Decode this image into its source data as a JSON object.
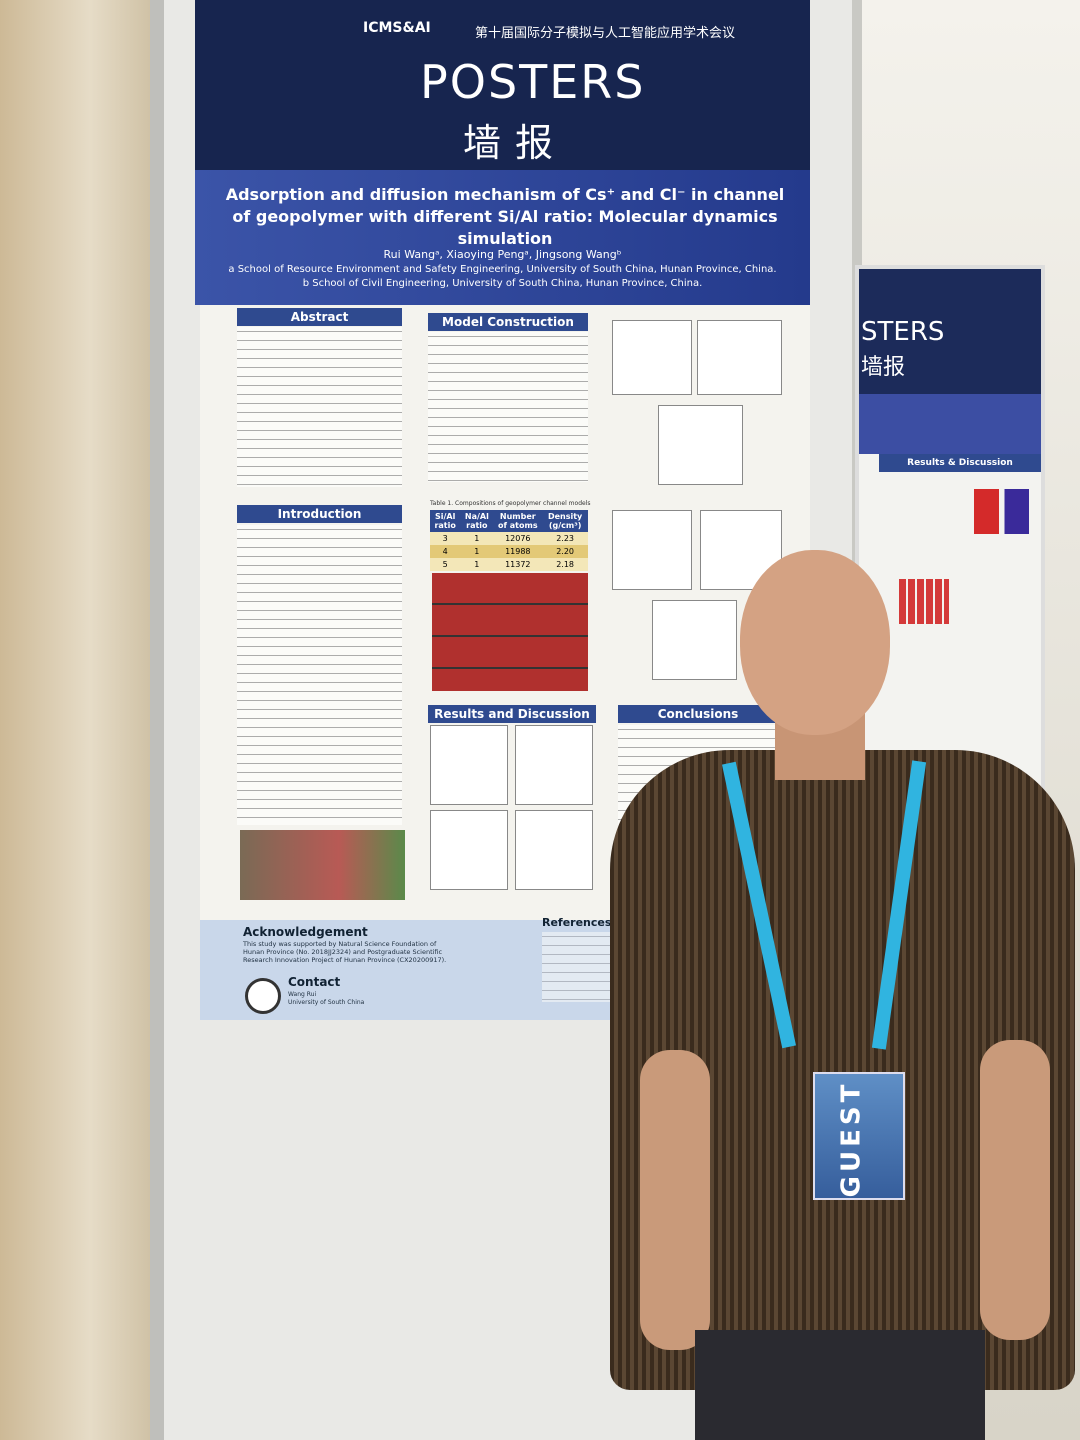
{
  "poster": {
    "conference_logo": "ICMS&AI",
    "conference_name": "第十届国际分子模拟与人工智能应用学术会议",
    "banner": "POSTERS",
    "banner_cn": "墙报",
    "title": "Adsorption and diffusion mechanism of Cs⁺ and Cl⁻ in channel of geopolymer with different Si/Al ratio: Molecular dynamics simulation",
    "authors": "Rui Wangᵃ, Xiaoying Pengᵃ, Jingsong Wangᵇ",
    "affiliations": [
      "a School of Resource Environment and Safety Engineering, University of South China, Hunan Province, China.",
      "b School of Civil Engineering, University of South China, Hunan Province, China."
    ],
    "sections": {
      "abstract": "Abstract",
      "model": "Model Construction",
      "introduction": "Introduction",
      "results": "Results and Discussion",
      "conclusions": "Conclusions",
      "acknowledgement": "Acknowledgement",
      "contact": "Contact",
      "references": "References"
    },
    "table": {
      "caption": "Table 1. Compositions of geopolymer channel models",
      "header": [
        "Si/Al ratio",
        "Na/Al ratio",
        "Number of atoms",
        "Density (g/cm³)"
      ],
      "rows": [
        [
          "3",
          "1",
          "12076",
          "2.23"
        ],
        [
          "4",
          "1",
          "11988",
          "2.20"
        ],
        [
          "5",
          "1",
          "11372",
          "2.18"
        ]
      ]
    },
    "acknowledgement_text": "This study was supported by Natural Science Foundation of Hunan Province (No. 2018JJ2324) and Postgraduate Scientific Research Innovation Project of Hunan Province (CX20200917).",
    "contact_lines": [
      "Wang Rui",
      "University of South China"
    ]
  },
  "side_poster": {
    "banner": "STERS",
    "banner_cn": "墙报",
    "section": "Results & Discussion"
  },
  "badge": {
    "label": "GUEST"
  }
}
